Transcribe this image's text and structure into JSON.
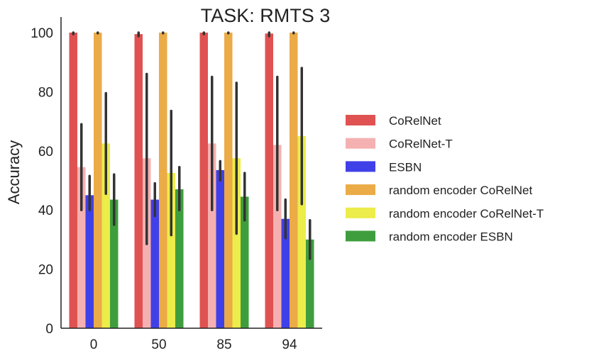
{
  "chart_data": {
    "type": "bar",
    "title": "TASK: RMTS 3",
    "xlabel": "",
    "ylabel": "Accuracy",
    "ylim": [
      0,
      105
    ],
    "yticks": [
      0,
      20,
      40,
      60,
      80,
      100
    ],
    "categories": [
      "0",
      "50",
      "85",
      "94"
    ],
    "grid": false,
    "legend_position": "right",
    "series": [
      {
        "name": "CoRelNet",
        "color": "#e05252",
        "values": [
          100,
          99.5,
          100,
          99.7
        ],
        "err_low": [
          99.5,
          98.8,
          99.5,
          98.8
        ],
        "err_high": [
          100,
          100,
          100,
          100
        ]
      },
      {
        "name": "CoRelNet-T",
        "color": "#f5b1b1",
        "values": [
          54.5,
          57.5,
          62.5,
          62
        ],
        "err_low": [
          40,
          28.5,
          40,
          40
        ],
        "err_high": [
          69,
          86,
          85,
          85
        ]
      },
      {
        "name": "ESBN",
        "color": "#4040e8",
        "values": [
          45,
          43.5,
          53.5,
          37
        ],
        "err_low": [
          40,
          38,
          50,
          30.5
        ],
        "err_high": [
          51.5,
          49,
          56.5,
          43.5
        ]
      },
      {
        "name": "random encoder CoRelNet",
        "color": "#ebab47",
        "values": [
          100,
          100,
          100,
          100
        ],
        "err_low": [
          99.8,
          99.8,
          99.8,
          99.8
        ],
        "err_high": [
          100,
          100,
          100,
          100
        ]
      },
      {
        "name": "random encoder CoRelNet-T",
        "color": "#ecec4a",
        "values": [
          62.5,
          52.5,
          57.5,
          65
        ],
        "err_low": [
          45.5,
          31.5,
          32,
          42
        ],
        "err_high": [
          79.5,
          73.5,
          83,
          88
        ]
      },
      {
        "name": "random encoder ESBN",
        "color": "#3e9e3e",
        "values": [
          43.5,
          47,
          44.5,
          30
        ],
        "err_low": [
          35,
          40,
          36.5,
          23.5
        ],
        "err_high": [
          52,
          54.5,
          52.5,
          36.5
        ]
      }
    ]
  }
}
